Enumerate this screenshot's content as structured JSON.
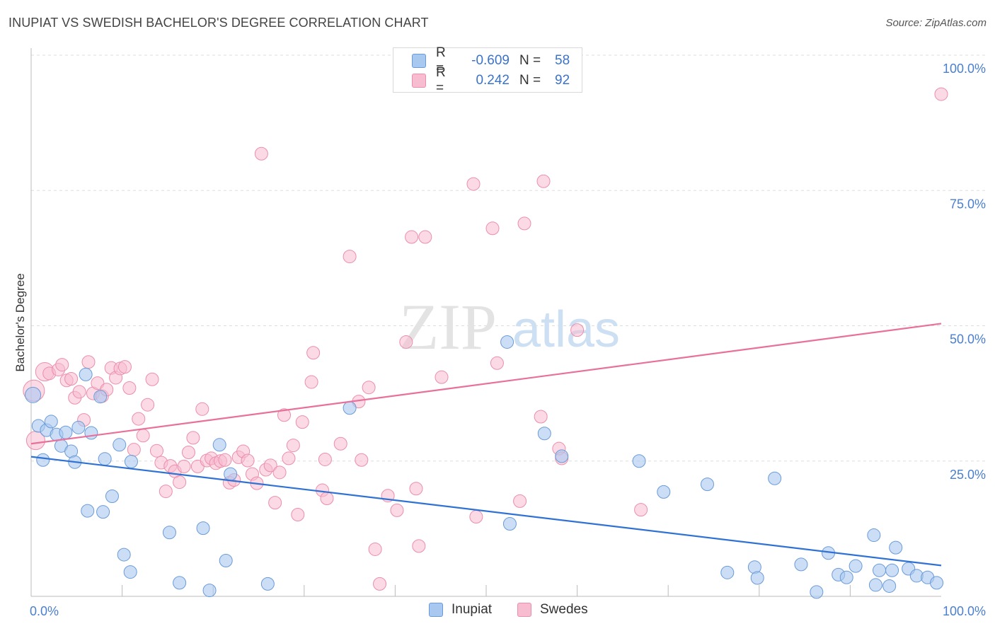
{
  "title": "INUPIAT VS SWEDISH BACHELOR'S DEGREE CORRELATION CHART",
  "source": "Source: ZipAtlas.com",
  "watermark": {
    "zip": "ZIP",
    "atlas": "atlas"
  },
  "colors": {
    "inupiat_fill": "#a9c8f0",
    "inupiat_stroke": "#6a9bd8",
    "inupiat_line": "#2f72d4",
    "swedes_fill": "#f7bcd0",
    "swedes_stroke": "#eb8eaa",
    "swedes_line": "#e8709a",
    "axis_text": "#4a7fd0",
    "grid": "#dddddd"
  },
  "legend": {
    "rows": [
      {
        "series": "Inupiat",
        "r_label": "R =",
        "r_value": "-0.609",
        "n_label": "N =",
        "n_value": "58"
      },
      {
        "series": "Swedes",
        "r_label": "R =",
        "r_value": "0.242",
        "n_label": "N =",
        "n_value": "92"
      }
    ]
  },
  "bottom_legend": {
    "inupiat": "Inupiat",
    "swedes": "Swedes"
  },
  "chart_data": {
    "type": "scatter",
    "title": "INUPIAT VS SWEDISH BACHELOR'S DEGREE CORRELATION CHART",
    "xlabel": "",
    "ylabel": "Bachelor's Degree",
    "xlim": [
      0,
      100
    ],
    "ylim": [
      0,
      100
    ],
    "x_tick_labels": [
      "0.0%",
      "100.0%"
    ],
    "y_ticks": [
      25,
      50,
      75,
      100
    ],
    "y_tick_labels": [
      "25.0%",
      "50.0%",
      "75.0%",
      "100.0%"
    ],
    "x_minor_ticks": [
      10,
      20,
      30,
      40,
      50,
      60,
      70,
      80,
      90
    ],
    "grid": true,
    "legend_position": "top-center",
    "series": [
      {
        "name": "Inupiat",
        "r": -0.609,
        "n": 58,
        "trend": {
          "x0": 0,
          "y0": 25.8,
          "x1": 100,
          "y1": 5.7
        },
        "points": [
          [
            0.2,
            37.2
          ],
          [
            0.8,
            31.5
          ],
          [
            1.3,
            25.2
          ],
          [
            1.7,
            30.7
          ],
          [
            2.2,
            32.3
          ],
          [
            2.8,
            29.9
          ],
          [
            3.3,
            27.8
          ],
          [
            3.8,
            30.3
          ],
          [
            4.4,
            26.8
          ],
          [
            4.8,
            24.8
          ],
          [
            5.2,
            31.2
          ],
          [
            6.0,
            41.0
          ],
          [
            6.2,
            15.8
          ],
          [
            6.6,
            30.2
          ],
          [
            7.6,
            36.9
          ],
          [
            7.9,
            15.6
          ],
          [
            8.1,
            25.4
          ],
          [
            8.9,
            18.5
          ],
          [
            9.7,
            28.0
          ],
          [
            10.2,
            7.7
          ],
          [
            10.9,
            4.5
          ],
          [
            11.0,
            24.9
          ],
          [
            15.2,
            11.8
          ],
          [
            16.3,
            2.5
          ],
          [
            18.9,
            12.6
          ],
          [
            19.6,
            1.1
          ],
          [
            20.7,
            28.0
          ],
          [
            21.4,
            6.6
          ],
          [
            21.9,
            22.6
          ],
          [
            26.0,
            2.3
          ],
          [
            35.0,
            34.8
          ],
          [
            52.3,
            47.0
          ],
          [
            52.6,
            13.4
          ],
          [
            56.4,
            30.1
          ],
          [
            58.3,
            25.9
          ],
          [
            66.8,
            25.0
          ],
          [
            69.5,
            19.3
          ],
          [
            74.3,
            20.7
          ],
          [
            76.5,
            4.4
          ],
          [
            79.5,
            5.4
          ],
          [
            79.8,
            3.4
          ],
          [
            81.7,
            21.8
          ],
          [
            84.6,
            5.9
          ],
          [
            86.3,
            0.8
          ],
          [
            87.6,
            8.0
          ],
          [
            88.7,
            4.0
          ],
          [
            89.6,
            3.5
          ],
          [
            90.6,
            5.6
          ],
          [
            92.6,
            11.3
          ],
          [
            92.8,
            2.1
          ],
          [
            93.2,
            4.8
          ],
          [
            94.3,
            1.9
          ],
          [
            94.6,
            4.8
          ],
          [
            95.0,
            9.0
          ],
          [
            96.4,
            5.1
          ],
          [
            97.3,
            3.8
          ],
          [
            98.5,
            3.5
          ],
          [
            99.5,
            2.5
          ]
        ]
      },
      {
        "name": "Swedes",
        "r": 0.242,
        "n": 92,
        "trend": {
          "x0": 0,
          "y0": 28.2,
          "x1": 100,
          "y1": 50.4
        },
        "points": [
          [
            0.3,
            38.0
          ],
          [
            0.5,
            28.8
          ],
          [
            1.5,
            41.5
          ],
          [
            2.0,
            41.2
          ],
          [
            3.0,
            41.9
          ],
          [
            3.4,
            42.8
          ],
          [
            3.9,
            39.9
          ],
          [
            4.4,
            40.2
          ],
          [
            4.8,
            36.7
          ],
          [
            5.3,
            37.8
          ],
          [
            5.8,
            32.6
          ],
          [
            6.3,
            43.3
          ],
          [
            6.8,
            37.5
          ],
          [
            7.3,
            39.4
          ],
          [
            7.8,
            37.0
          ],
          [
            8.3,
            38.2
          ],
          [
            8.8,
            42.2
          ],
          [
            9.3,
            40.4
          ],
          [
            9.8,
            42.1
          ],
          [
            10.3,
            42.4
          ],
          [
            10.8,
            38.5
          ],
          [
            11.3,
            27.1
          ],
          [
            11.8,
            32.8
          ],
          [
            12.3,
            29.7
          ],
          [
            12.8,
            35.4
          ],
          [
            13.3,
            40.1
          ],
          [
            13.8,
            26.9
          ],
          [
            14.3,
            24.7
          ],
          [
            14.8,
            19.4
          ],
          [
            15.3,
            24.1
          ],
          [
            15.8,
            23.1
          ],
          [
            16.3,
            21.1
          ],
          [
            16.8,
            24.0
          ],
          [
            17.3,
            26.6
          ],
          [
            17.8,
            29.3
          ],
          [
            18.3,
            24.0
          ],
          [
            18.8,
            34.6
          ],
          [
            19.3,
            25.1
          ],
          [
            19.8,
            25.5
          ],
          [
            20.3,
            24.6
          ],
          [
            20.8,
            25.0
          ],
          [
            21.3,
            25.2
          ],
          [
            21.8,
            21.0
          ],
          [
            22.3,
            21.5
          ],
          [
            22.8,
            25.7
          ],
          [
            23.3,
            26.8
          ],
          [
            23.8,
            25.1
          ],
          [
            24.3,
            22.6
          ],
          [
            24.8,
            20.9
          ],
          [
            25.3,
            81.8
          ],
          [
            25.8,
            23.4
          ],
          [
            26.3,
            24.2
          ],
          [
            26.8,
            17.3
          ],
          [
            27.3,
            22.9
          ],
          [
            27.8,
            33.5
          ],
          [
            28.3,
            25.5
          ],
          [
            28.8,
            27.9
          ],
          [
            29.3,
            15.1
          ],
          [
            29.8,
            32.2
          ],
          [
            30.8,
            39.6
          ],
          [
            31.0,
            45.0
          ],
          [
            32.0,
            19.6
          ],
          [
            32.3,
            25.3
          ],
          [
            32.5,
            18.1
          ],
          [
            34.0,
            28.2
          ],
          [
            35.0,
            62.8
          ],
          [
            36.0,
            36.0
          ],
          [
            36.3,
            25.2
          ],
          [
            37.1,
            38.6
          ],
          [
            37.8,
            8.7
          ],
          [
            38.3,
            2.3
          ],
          [
            39.2,
            18.6
          ],
          [
            40.2,
            15.9
          ],
          [
            41.2,
            47.0
          ],
          [
            41.8,
            66.4
          ],
          [
            42.3,
            19.9
          ],
          [
            42.6,
            9.3
          ],
          [
            43.3,
            66.4
          ],
          [
            45.1,
            40.5
          ],
          [
            48.6,
            76.2
          ],
          [
            48.9,
            14.7
          ],
          [
            50.7,
            68.0
          ],
          [
            51.2,
            43.1
          ],
          [
            53.7,
            17.6
          ],
          [
            54.2,
            68.9
          ],
          [
            56.0,
            33.2
          ],
          [
            56.3,
            76.7
          ],
          [
            58.0,
            27.3
          ],
          [
            58.3,
            25.5
          ],
          [
            60.0,
            49.2
          ],
          [
            67.0,
            16.0
          ],
          [
            100.0,
            92.8
          ]
        ]
      }
    ]
  }
}
